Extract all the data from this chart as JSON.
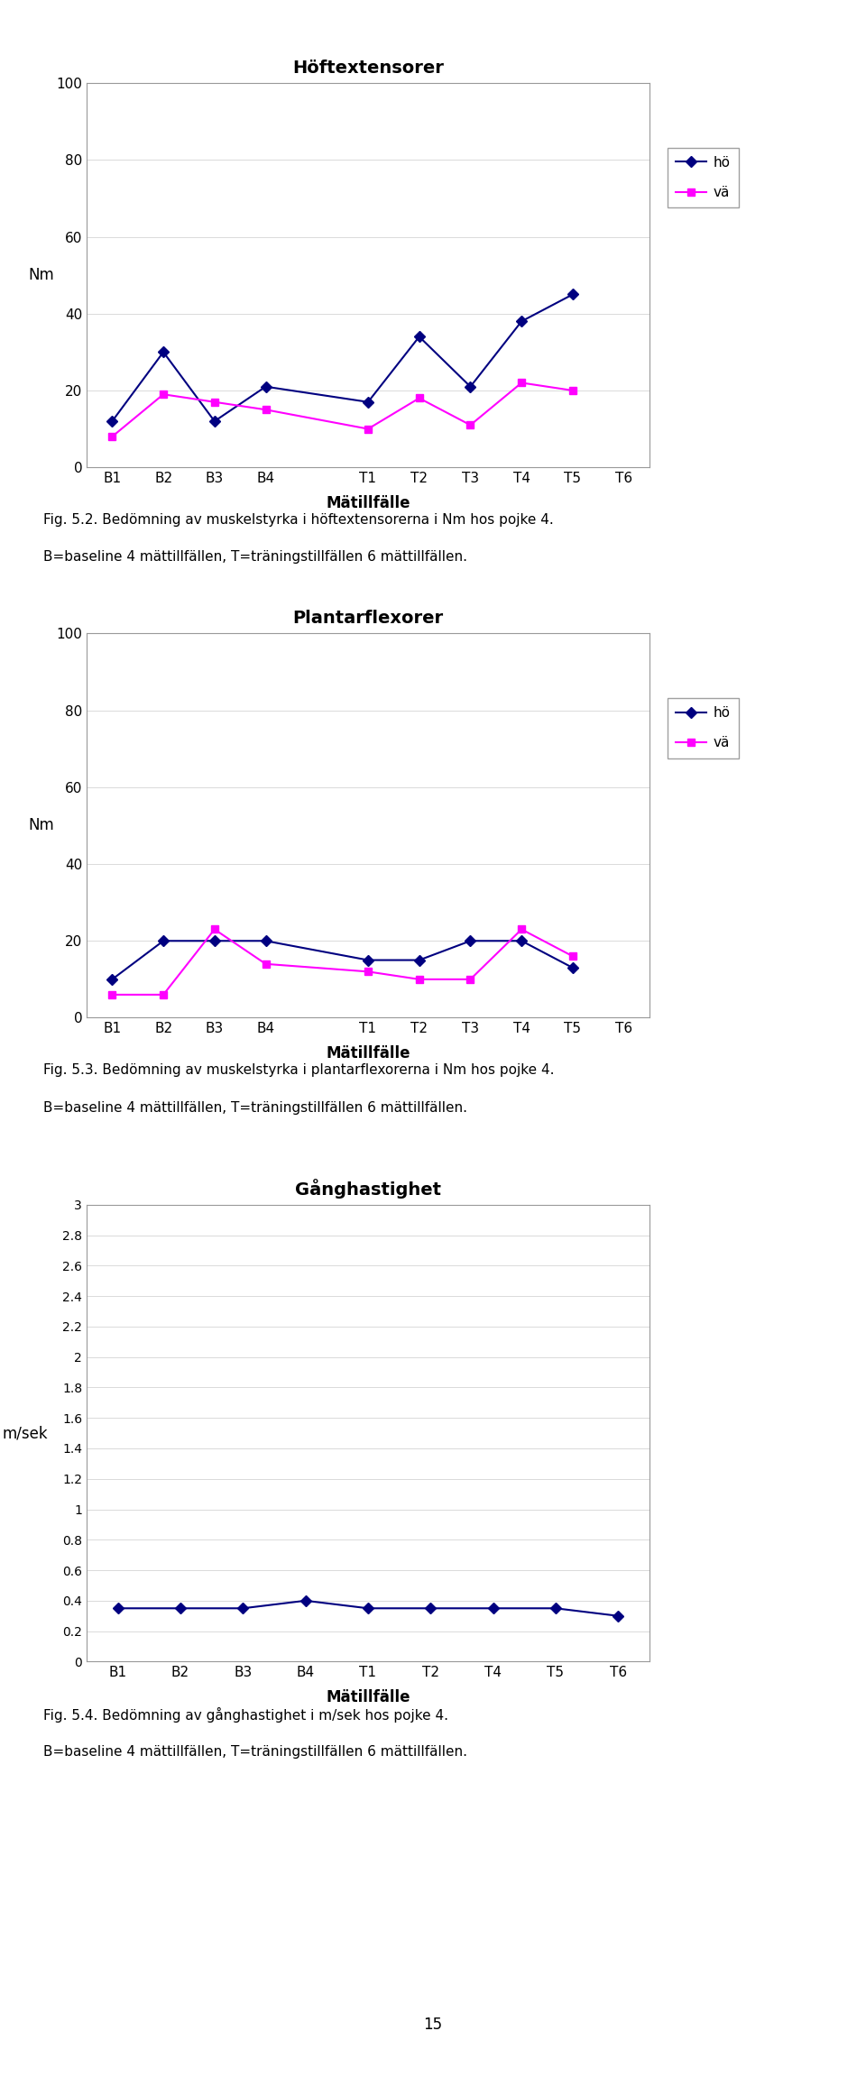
{
  "chart1": {
    "title": "Höftextensorer",
    "xlabel": "Mätillfälle",
    "ylabel": "Nm",
    "xtick_labels": [
      "B1",
      "B2",
      "B3",
      "B4",
      "",
      "T1",
      "T2",
      "T3",
      "T4",
      "T5",
      "T6"
    ],
    "ylim": [
      0,
      100
    ],
    "yticks": [
      0,
      20,
      40,
      60,
      80,
      100
    ],
    "ho_values": [
      12,
      30,
      12,
      21,
      17,
      34,
      21,
      38,
      45
    ],
    "va_values": [
      8,
      19,
      17,
      15,
      10,
      18,
      11,
      22,
      20
    ],
    "ho_x": [
      0,
      1,
      2,
      3,
      5,
      6,
      7,
      8,
      9
    ],
    "va_x": [
      0,
      1,
      2,
      3,
      5,
      6,
      7,
      8,
      9
    ],
    "ho_color": "#000080",
    "va_color": "#FF00FF",
    "caption_line1": "Fig. 5.2. Bedömning av muskelstyrka i höftextensorerna i Nm hos pojke 4.",
    "caption_line2": "B=baseline 4 mättillfällen, T=träningstillfällen 6 mättillfällen."
  },
  "chart2": {
    "title": "Plantarflexorer",
    "xlabel": "Mätillfälle",
    "ylabel": "Nm",
    "xtick_labels": [
      "B1",
      "B2",
      "B3",
      "B4",
      "",
      "T1",
      "T2",
      "T3",
      "T4",
      "T5",
      "T6"
    ],
    "ylim": [
      0,
      100
    ],
    "yticks": [
      0,
      20,
      40,
      60,
      80,
      100
    ],
    "ho_values": [
      10,
      20,
      20,
      20,
      15,
      15,
      20,
      20,
      13
    ],
    "va_values": [
      6,
      6,
      23,
      14,
      12,
      10,
      10,
      23,
      16
    ],
    "ho_x": [
      0,
      1,
      2,
      3,
      5,
      6,
      7,
      8,
      9
    ],
    "va_x": [
      0,
      1,
      2,
      3,
      5,
      6,
      7,
      8,
      9
    ],
    "ho_color": "#000080",
    "va_color": "#FF00FF",
    "caption_line1": "Fig. 5.3. Bedömning av muskelstyrka i plantarflexorerna i Nm hos pojke 4.",
    "caption_line2": "B=baseline 4 mättillfällen, T=träningstillfällen 6 mättillfällen."
  },
  "chart3": {
    "title": "Gånghastighet",
    "xlabel": "Mätillfälle",
    "ylabel": "m/sek",
    "xtick_labels": [
      "B1",
      "B2",
      "B3",
      "B4",
      "T1",
      "T2",
      "T4",
      "T5",
      "T6"
    ],
    "ylim": [
      0,
      3.0
    ],
    "yticks": [
      0,
      0.2,
      0.4,
      0.6,
      0.8,
      1.0,
      1.2,
      1.4,
      1.6,
      1.8,
      2.0,
      2.2,
      2.4,
      2.6,
      2.8,
      3.0
    ],
    "ho_values": [
      0.35,
      0.35,
      0.35,
      0.4,
      0.35,
      0.35,
      0.35,
      0.35,
      0.3
    ],
    "ho_x": [
      0,
      1,
      2,
      3,
      4,
      5,
      6,
      7,
      8
    ],
    "ho_color": "#000080",
    "caption_line1": "Fig. 5.4. Bedömning av gånghastighet i m/sek hos pojke 4.",
    "caption_line2": "B=baseline 4 mättillfällen, T=träningstillfällen 6 mättillfällen."
  },
  "page_number": "15",
  "background_color": "#ffffff"
}
